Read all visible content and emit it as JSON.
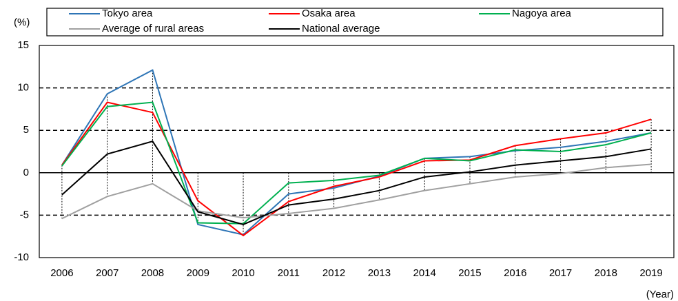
{
  "chart_data": {
    "type": "line",
    "ylabel": "(%)",
    "xlabel": "(Year)",
    "categories": [
      "2006",
      "2007",
      "2008",
      "2009",
      "2010",
      "2011",
      "2012",
      "2013",
      "2014",
      "2015",
      "2016",
      "2017",
      "2018",
      "2019"
    ],
    "series": [
      {
        "name": "Tokyo area",
        "color": "#2e75b6",
        "values": [
          0.9,
          9.3,
          12.1,
          -6.1,
          -7.3,
          -2.5,
          -1.8,
          -0.4,
          1.7,
          1.9,
          2.6,
          3.0,
          3.7,
          4.7
        ]
      },
      {
        "name": "Osaka area",
        "color": "#ff0000",
        "values": [
          0.9,
          8.3,
          7.1,
          -3.3,
          -7.4,
          -3.4,
          -1.6,
          -0.5,
          1.4,
          1.5,
          3.2,
          4.0,
          4.7,
          6.3
        ]
      },
      {
        "name": "Nagoya area",
        "color": "#00b050",
        "values": [
          0.8,
          7.8,
          8.3,
          -5.9,
          -6.0,
          -1.2,
          -0.9,
          -0.3,
          1.7,
          1.4,
          2.7,
          2.5,
          3.3,
          4.7
        ]
      },
      {
        "name": "Average of rural areas",
        "color": "#a0a0a0",
        "values": [
          -5.4,
          -2.8,
          -1.3,
          -4.5,
          -5.3,
          -4.8,
          -4.2,
          -3.2,
          -2.1,
          -1.3,
          -0.5,
          -0.1,
          0.6,
          1.0
        ]
      },
      {
        "name": "National average",
        "color": "#000000",
        "values": [
          -2.6,
          2.2,
          3.7,
          -4.6,
          -6.1,
          -3.8,
          -3.1,
          -2.1,
          -0.5,
          0.1,
          0.9,
          1.4,
          1.9,
          2.8
        ]
      }
    ],
    "ylim": [
      -10,
      15
    ],
    "yticks": [
      -10,
      -5,
      0,
      5,
      10,
      15
    ],
    "grid": true
  }
}
